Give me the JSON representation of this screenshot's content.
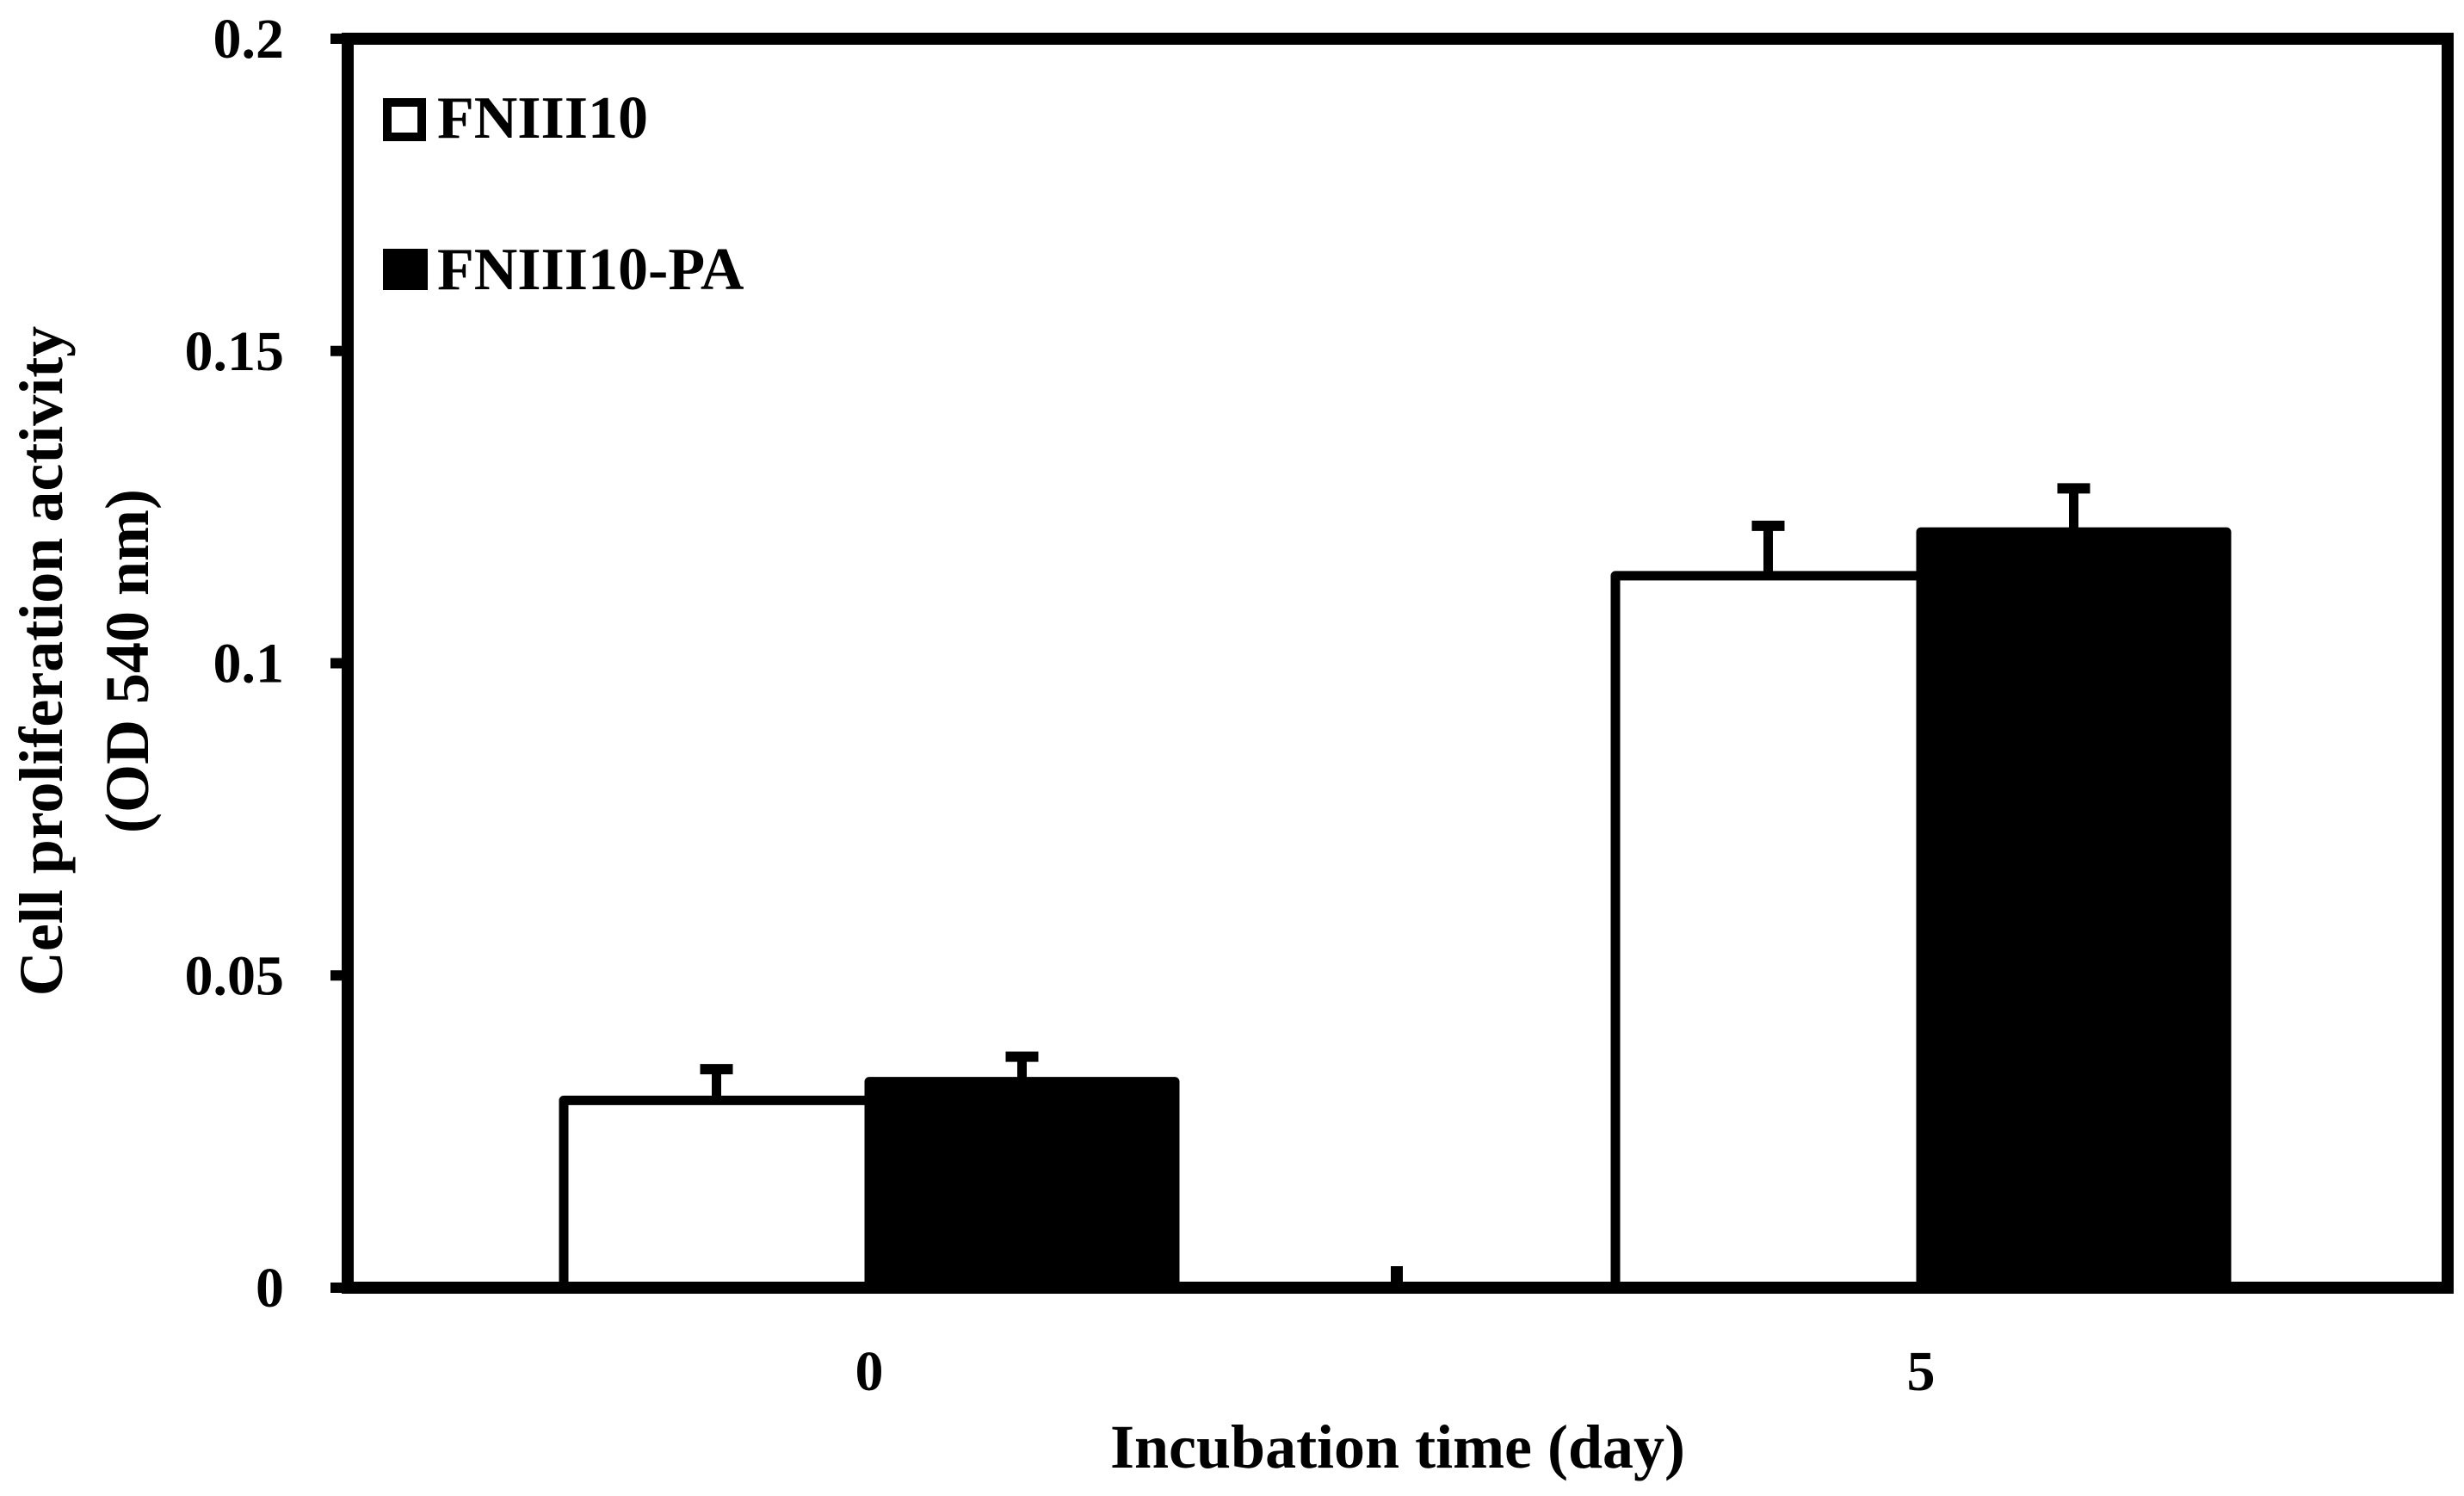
{
  "chart_data": {
    "type": "bar",
    "title": "",
    "xlabel": "Incubation time (day)",
    "ylabel": [
      "Cell proliferation activity",
      "(OD 540 nm)"
    ],
    "categories": [
      "0",
      "5"
    ],
    "series": [
      {
        "name": "FNIII10",
        "fill": "#ffffff",
        "values": [
          0.03,
          0.114
        ],
        "errors": [
          0.005,
          0.008
        ]
      },
      {
        "name": "FNIII10-PA",
        "fill": "#000000",
        "values": [
          0.033,
          0.121
        ],
        "errors": [
          0.004,
          0.007
        ]
      }
    ],
    "ylim": [
      0,
      0.2
    ],
    "yticks": [
      0,
      0.05,
      0.1,
      0.15,
      0.2
    ],
    "ytick_labels": [
      "0",
      "0.05",
      "0.1",
      "0.15",
      "0.2"
    ],
    "grid": false,
    "legend_position": "top-left"
  },
  "colors": {
    "axis": "#000000",
    "background": "#ffffff"
  }
}
